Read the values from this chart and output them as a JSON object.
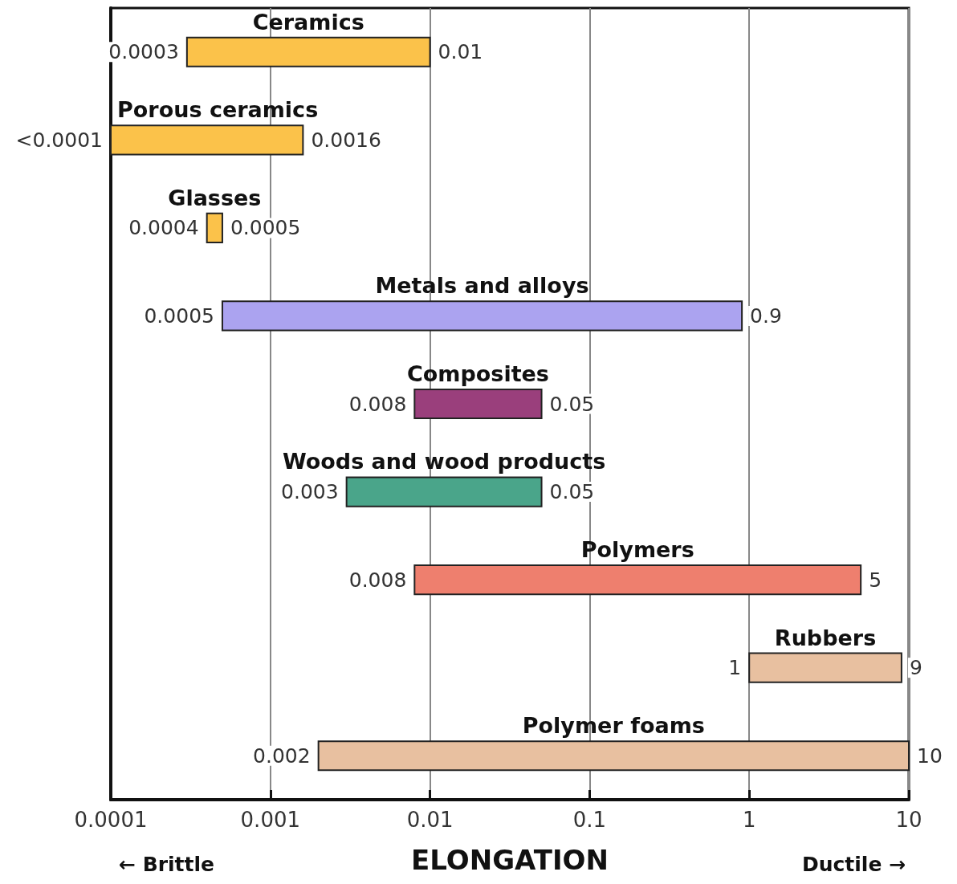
{
  "chart_data": {
    "type": "bar",
    "orientation": "horizontal",
    "log": "x",
    "xlabel": "ELONGATION",
    "categories": [
      "Ceramics",
      "Porous ceramics",
      "Glasses",
      "Metals and alloys",
      "Composites",
      "Woods and wood products",
      "Polymers",
      "Rubbers",
      "Polymer foams"
    ],
    "base": [
      0.0003,
      0.0001,
      0.0004,
      0.0005,
      0.008,
      0.003,
      0.008,
      1,
      0.002
    ],
    "values": [
      0.0097,
      0.0015,
      0.0001,
      0.8995,
      0.042,
      0.047,
      4.992,
      8,
      9.998
    ],
    "colors": [
      "#fbc24a",
      "#fbc24a",
      "#fbc24a",
      "#aba3f0",
      "#9a3f7c",
      "#4aa58a",
      "#ee7f6e",
      "#e8c0a0",
      "#e8c0a0"
    ],
    "xlim": [
      0.0001,
      10
    ],
    "xticks": [
      0.0001,
      0.001,
      0.01,
      0.1,
      1,
      10
    ],
    "grid": "x",
    "annotations": [
      {
        "text": "0.0003",
        "x": 0.0003,
        "y": "Ceramics"
      },
      {
        "text": "0.01",
        "x": 0.01,
        "y": "Ceramics"
      },
      {
        "text": "<0.0001",
        "x": 0.0001,
        "y": "Porous ceramics"
      },
      {
        "text": "0.0016",
        "x": 0.0016,
        "y": "Porous ceramics"
      },
      {
        "text": "0.0004",
        "x": 0.0004,
        "y": "Glasses"
      },
      {
        "text": "0.0005",
        "x": 0.0005,
        "y": "Glasses"
      },
      {
        "text": "0.0005",
        "x": 0.0005,
        "y": "Metals and alloys"
      },
      {
        "text": "0.9",
        "x": 0.9,
        "y": "Metals and alloys"
      },
      {
        "text": "0.008",
        "x": 0.008,
        "y": "Composites"
      },
      {
        "text": "0.05",
        "x": 0.05,
        "y": "Composites"
      },
      {
        "text": "0.003",
        "x": 0.003,
        "y": "Woods and wood products"
      },
      {
        "text": "0.05",
        "x": 0.05,
        "y": "Woods and wood products"
      },
      {
        "text": "0.008",
        "x": 0.008,
        "y": "Polymers"
      },
      {
        "text": "5",
        "x": 5,
        "y": "Polymers"
      },
      {
        "text": "1",
        "x": 1,
        "y": "Rubbers"
      },
      {
        "text": "9",
        "x": 9,
        "y": "Rubbers"
      },
      {
        "text": "0.002",
        "x": 0.002,
        "y": "Polymer foams"
      },
      {
        "text": "10",
        "x": 10,
        "y": "Polymer foams"
      },
      "← Brittle",
      "Ductile →"
    ]
  }
}
